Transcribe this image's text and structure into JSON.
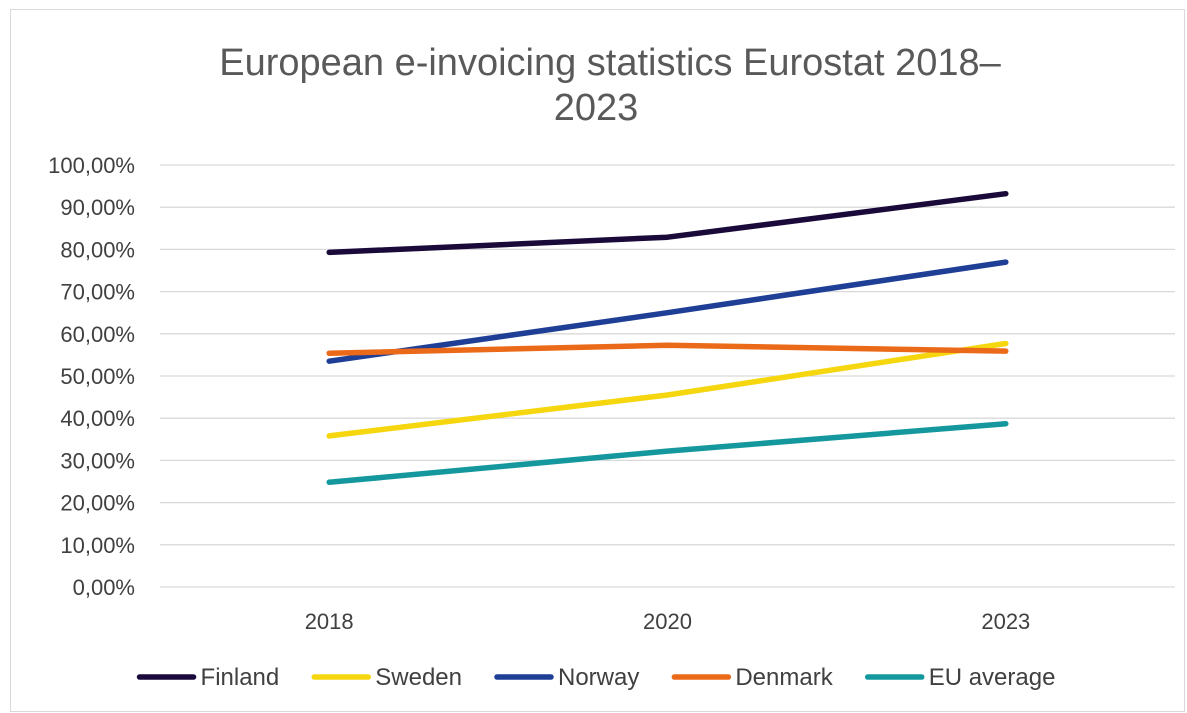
{
  "chart_data": {
    "type": "line",
    "title_lines": [
      "European e-invoicing statistics Eurostat 2018–",
      "2023"
    ],
    "categories": [
      "2018",
      "2020",
      "2023"
    ],
    "ylim": [
      0,
      100
    ],
    "y_ticks": [
      {
        "value": 0,
        "label": "0,00%"
      },
      {
        "value": 10,
        "label": "10,00%"
      },
      {
        "value": 20,
        "label": "20,00%"
      },
      {
        "value": 30,
        "label": "30,00%"
      },
      {
        "value": 40,
        "label": "40,00%"
      },
      {
        "value": 50,
        "label": "50,00%"
      },
      {
        "value": 60,
        "label": "60,00%"
      },
      {
        "value": 70,
        "label": "70,00%"
      },
      {
        "value": 80,
        "label": "80,00%"
      },
      {
        "value": 90,
        "label": "90,00%"
      },
      {
        "value": 100,
        "label": "100,00%"
      }
    ],
    "grid": true,
    "legend_position": "bottom",
    "series": [
      {
        "name": "Finland",
        "color": "#1a0a3a",
        "values": [
          79.3,
          82.9,
          93.2
        ]
      },
      {
        "name": "Sweden",
        "color": "#f5d60f",
        "values": [
          35.8,
          45.5,
          57.7
        ]
      },
      {
        "name": "Norway",
        "color": "#1f3f97",
        "values": [
          53.5,
          65.0,
          77.0
        ]
      },
      {
        "name": "Denmark",
        "color": "#ea6a1a",
        "values": [
          55.4,
          57.3,
          55.9
        ]
      },
      {
        "name": "EU average",
        "color": "#14989e",
        "values": [
          24.8,
          32.2,
          38.7
        ]
      }
    ]
  }
}
